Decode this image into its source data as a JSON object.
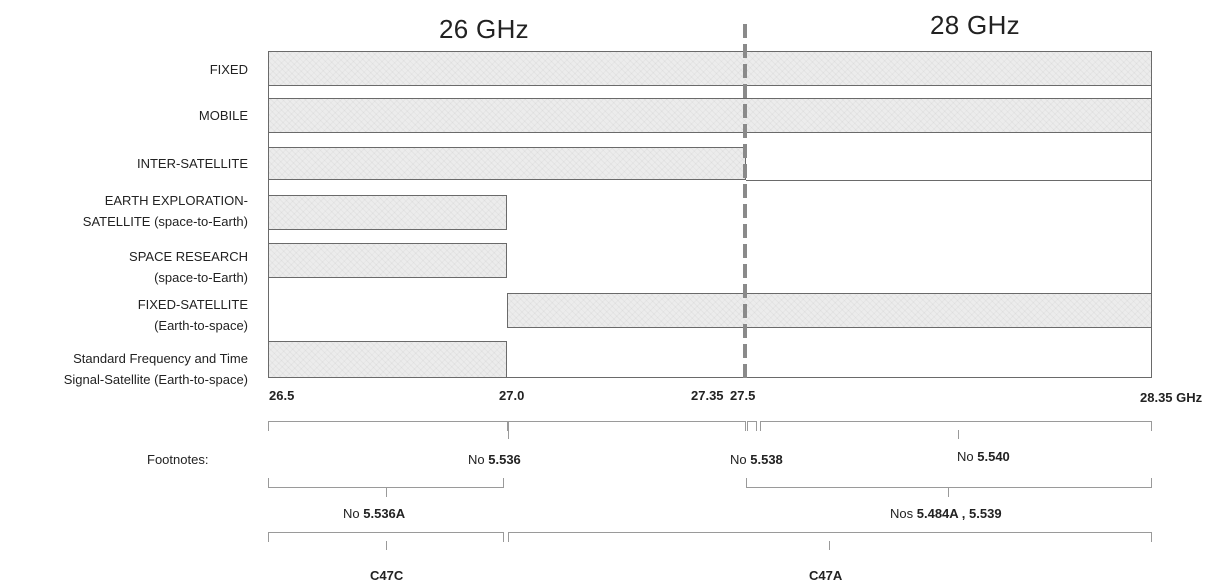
{
  "titles": {
    "band_26": "26 GHz",
    "band_28": "28 GHz"
  },
  "services": [
    {
      "label": "FIXED"
    },
    {
      "label": "MOBILE"
    },
    {
      "label": "INTER-SATELLITE"
    },
    {
      "label": "EARTH EXPLORATION-\nSATELLITE (space-to-Earth)"
    },
    {
      "label": "SPACE RESEARCH\n(space-to-Earth)"
    },
    {
      "label": "FIXED-SATELLITE\n(Earth-to-space)"
    },
    {
      "label": "Standard Frequency and Time\nSignal-Satellite (Earth-to-space)"
    }
  ],
  "allocations": {
    "fixed": [
      26.5,
      28.35
    ],
    "mobile": [
      26.5,
      28.35
    ],
    "inter_satellite": [
      26.5,
      27.5
    ],
    "earth_exploration_satellite": [
      26.5,
      27.0
    ],
    "space_research": [
      26.5,
      27.0
    ],
    "fixed_satellite": [
      27.0,
      28.35
    ],
    "standard_frequency_time": [
      26.5,
      27.0
    ]
  },
  "axis": {
    "ticks": [
      "26.5",
      "27.0",
      "27.35",
      "27.5",
      "28.35 GHz"
    ],
    "range": [
      26.5,
      28.35
    ],
    "boundary": "27.5"
  },
  "footnotes": {
    "label": "Footnotes:",
    "f5536": {
      "prefix": "No",
      "num": "5.536"
    },
    "f5538": {
      "prefix": "No",
      "num": "5.538"
    },
    "f5540": {
      "prefix": "No",
      "num": "5.540"
    },
    "f5536A": {
      "prefix": "No",
      "num": "5.536A"
    },
    "f5484": {
      "prefix": "Nos",
      "num": "5.484A , 5.539"
    }
  },
  "codes": {
    "c47c": "C47C",
    "c47a": "C47A"
  }
}
